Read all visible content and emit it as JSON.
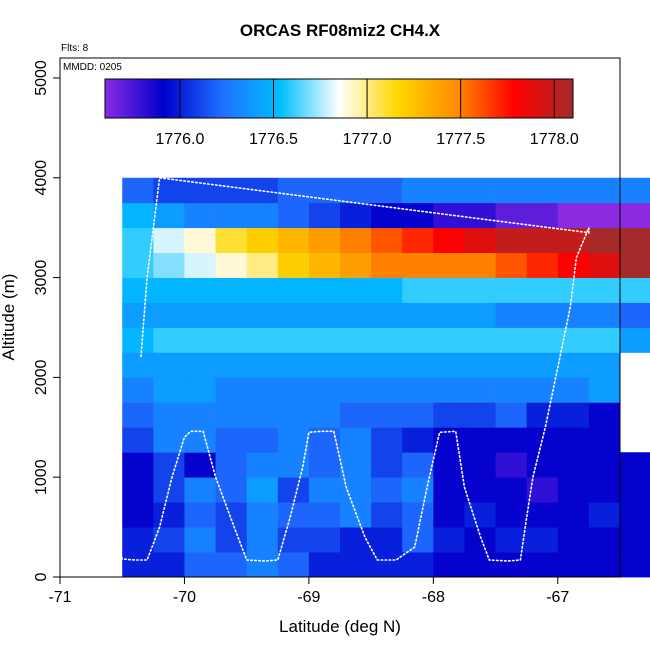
{
  "chart_data": {
    "type": "heatmap",
    "title": "ORCAS RF08miz2 CH4.X",
    "note_flts": "Flts: 8",
    "note_mmdd": "MMDD: 0205",
    "xlabel": "Latitude (deg N)",
    "ylabel": "Altitude (m)",
    "xlim": [
      -71,
      -66.5
    ],
    "ylim": [
      0,
      5200
    ],
    "xticks": [
      "-71",
      "-70",
      "-69",
      "-68",
      "-67"
    ],
    "yticks": [
      "0",
      "1000",
      "2000",
      "3000",
      "4000",
      "5000"
    ],
    "colorbar": {
      "range": [
        1775.6,
        1778.1
      ],
      "ticks": [
        "1776.0",
        "1776.5",
        "1777.0",
        "1777.5",
        "1778.0"
      ],
      "colors": [
        "#8a2be2",
        "#0000cd",
        "#1e6fff",
        "#00bfff",
        "#ffffff",
        "#ffd700",
        "#ff8c00",
        "#ff0000",
        "#a52a2a"
      ]
    },
    "grid": {
      "lat_start": -70.5,
      "lat_step": 0.25,
      "alt_start": 0,
      "alt_step": 250,
      "rows": [
        [
          1776.0,
          1776.0,
          1776.2,
          1776.2,
          1776.3,
          1776.2,
          1776.0,
          1776.0,
          1776.0,
          1776.0,
          1775.9,
          1775.9,
          1775.9,
          1775.9,
          1775.9,
          1775.9,
          1775.9
        ],
        [
          1776.0,
          1776.1,
          1776.3,
          1776.1,
          1776.3,
          1776.1,
          1776.1,
          1776.0,
          1776.0,
          1776.2,
          1776.0,
          1775.9,
          1776.0,
          1776.0,
          1775.9,
          1775.9,
          1775.9
        ],
        [
          1775.9,
          1776.0,
          1776.2,
          1776.1,
          1776.3,
          1776.2,
          1776.2,
          1776.3,
          1776.1,
          1776.2,
          1775.9,
          1776.0,
          1775.9,
          1775.9,
          1775.9,
          1776.0,
          1775.9
        ],
        [
          1775.9,
          1776.1,
          1776.3,
          1776.2,
          1776.4,
          1776.1,
          1776.3,
          1776.3,
          1776.2,
          1776.3,
          1775.9,
          1775.9,
          1775.9,
          1775.8,
          1775.9,
          1775.9,
          1775.9
        ],
        [
          1775.9,
          1776.1,
          1775.9,
          1776.2,
          1776.3,
          1776.3,
          1776.2,
          1776.3,
          1776.1,
          1776.2,
          1775.9,
          1775.9,
          1775.8,
          1775.9,
          1775.9,
          1775.9,
          1775.9
        ],
        [
          1776.1,
          1776.3,
          1776.3,
          1776.2,
          1776.2,
          1776.3,
          1776.2,
          1776.3,
          1776.1,
          1776.0,
          1775.9,
          1775.9,
          1775.9,
          1775.9,
          1775.9,
          1775.9,
          null
        ],
        [
          1776.2,
          1776.3,
          1776.3,
          1776.3,
          1776.3,
          1776.3,
          1776.3,
          1776.2,
          1776.2,
          1776.2,
          1776.1,
          1776.1,
          1776.2,
          1776.0,
          1776.0,
          1775.9,
          null
        ],
        [
          1776.3,
          1776.4,
          1776.4,
          1776.3,
          1776.3,
          1776.3,
          1776.3,
          1776.3,
          1776.3,
          1776.3,
          1776.3,
          1776.3,
          1776.3,
          1776.3,
          1776.3,
          1776.4,
          null
        ],
        [
          1776.4,
          1776.4,
          1776.4,
          1776.4,
          1776.4,
          1776.4,
          1776.4,
          1776.4,
          1776.4,
          1776.4,
          1776.4,
          1776.4,
          1776.4,
          1776.4,
          1776.4,
          1776.4,
          null
        ],
        [
          1776.5,
          1776.6,
          1776.6,
          1776.6,
          1776.6,
          1776.6,
          1776.6,
          1776.6,
          1776.6,
          1776.6,
          1776.6,
          1776.6,
          1776.6,
          1776.6,
          1776.6,
          1776.6,
          1776.4
        ],
        [
          1776.4,
          1776.4,
          1776.4,
          1776.4,
          1776.4,
          1776.4,
          1776.4,
          1776.4,
          1776.4,
          1776.4,
          1776.4,
          1776.4,
          1776.3,
          1776.3,
          1776.3,
          1776.3,
          1776.2
        ],
        [
          1776.5,
          1776.5,
          1776.5,
          1776.5,
          1776.5,
          1776.5,
          1776.5,
          1776.5,
          1776.5,
          1776.6,
          1776.6,
          1776.6,
          1776.6,
          1776.6,
          1776.6,
          1776.6,
          1776.6
        ],
        [
          1776.6,
          1776.7,
          1776.8,
          1776.9,
          1777.0,
          1777.2,
          1777.3,
          1777.4,
          1777.5,
          1777.5,
          1777.5,
          1777.5,
          1777.6,
          1777.7,
          1777.8,
          1777.9,
          1778.1
        ],
        [
          1776.6,
          1776.8,
          1776.9,
          1777.1,
          1777.2,
          1777.3,
          1777.4,
          1777.5,
          1777.6,
          1777.7,
          1777.8,
          1777.9,
          1778.0,
          1778.0,
          1778.0,
          1778.1,
          1778.1
        ],
        [
          1776.5,
          1776.4,
          1776.3,
          1776.3,
          1776.3,
          1776.2,
          1776.1,
          1776.0,
          1775.9,
          1775.9,
          1775.8,
          1775.8,
          1775.7,
          1775.7,
          1775.6,
          1775.6,
          1775.5
        ],
        [
          1776.2,
          1776.1,
          1776.1,
          1776.1,
          1776.1,
          1776.2,
          1776.2,
          1776.2,
          1776.2,
          1776.3,
          1776.3,
          1776.3,
          1776.3,
          1776.3,
          1776.3,
          1776.3,
          1776.3
        ]
      ]
    },
    "flight_path": {
      "color": "#ffffff",
      "points": [
        [
          -70.55,
          950
        ],
        [
          -70.55,
          600
        ],
        [
          -70.53,
          300
        ],
        [
          -70.5,
          180
        ],
        [
          -70.4,
          170
        ],
        [
          -70.3,
          170
        ],
        [
          -70.2,
          500
        ],
        [
          -70.1,
          1000
        ],
        [
          -70.0,
          1400
        ],
        [
          -69.95,
          1460
        ],
        [
          -69.85,
          1460
        ],
        [
          -69.75,
          1000
        ],
        [
          -69.6,
          500
        ],
        [
          -69.5,
          170
        ],
        [
          -69.35,
          160
        ],
        [
          -69.25,
          170
        ],
        [
          -69.15,
          600
        ],
        [
          -69.05,
          1100
        ],
        [
          -69.0,
          1450
        ],
        [
          -68.9,
          1460
        ],
        [
          -68.8,
          1460
        ],
        [
          -68.7,
          900
        ],
        [
          -68.55,
          400
        ],
        [
          -68.45,
          170
        ],
        [
          -68.3,
          170
        ],
        [
          -68.15,
          300
        ],
        [
          -68.05,
          900
        ],
        [
          -67.95,
          1450
        ],
        [
          -67.82,
          1460
        ],
        [
          -67.75,
          900
        ],
        [
          -67.62,
          400
        ],
        [
          -67.55,
          170
        ],
        [
          -67.4,
          160
        ],
        [
          -67.3,
          170
        ],
        [
          -67.25,
          600
        ],
        [
          -67.2,
          1000
        ],
        [
          -67.1,
          1500
        ],
        [
          -67.0,
          2100
        ],
        [
          -66.9,
          2700
        ],
        [
          -66.85,
          3200
        ],
        [
          -66.75,
          3500
        ],
        [
          -66.75,
          3450
        ],
        [
          -70.2,
          4000
        ],
        [
          -70.3,
          3000
        ],
        [
          -70.35,
          2200
        ]
      ]
    }
  }
}
